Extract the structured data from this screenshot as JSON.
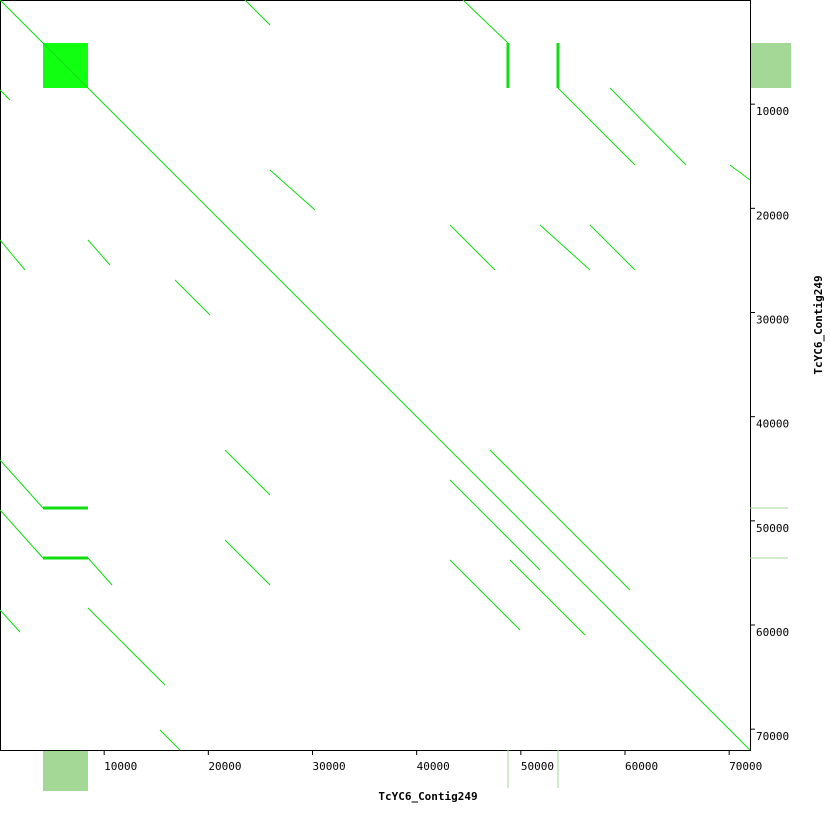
{
  "chart_data": {
    "type": "dotplot",
    "xlabel": "TcYC6_Contig249",
    "ylabel": "TcYC6_Contig249",
    "xlim": [
      0,
      72000
    ],
    "ylim": [
      0,
      72000
    ],
    "xticks": [
      10000,
      20000,
      30000,
      40000,
      50000,
      60000,
      70000
    ],
    "yticks": [
      10000,
      20000,
      30000,
      40000,
      50000,
      60000,
      70000
    ],
    "color": "#11dd11",
    "block_color": "#11ff11",
    "coverage_color": "#a3d896",
    "blocks": [
      [
        4128,
        4128,
        8448,
        8448
      ]
    ],
    "segments": [
      [
        0,
        0,
        72000,
        72000
      ],
      [
        23520,
        0,
        25920,
        2400
      ],
      [
        44448,
        0,
        48768,
        4128
      ],
      [
        53568,
        8448,
        60960,
        15840
      ],
      [
        58560,
        8448,
        65856,
        15840
      ],
      [
        0,
        8640,
        960,
        9600
      ],
      [
        25920,
        16320,
        30240,
        20160
      ],
      [
        0,
        23040,
        2400,
        25920
      ],
      [
        8448,
        23040,
        10560,
        25440
      ],
      [
        16800,
        26880,
        20160,
        30240
      ],
      [
        43200,
        21600,
        47520,
        25920
      ],
      [
        51840,
        21600,
        56640,
        25920
      ],
      [
        56640,
        21600,
        60960,
        25920
      ],
      [
        0,
        44160,
        4128,
        48768
      ],
      [
        0,
        48960,
        4128,
        53568
      ],
      [
        8448,
        53568,
        10752,
        56160
      ],
      [
        8448,
        58368,
        15840,
        65760
      ],
      [
        21600,
        43200,
        25920,
        47520
      ],
      [
        21600,
        51840,
        25920,
        56160
      ],
      [
        43200,
        46080,
        51840,
        54720
      ],
      [
        47040,
        43200,
        60480,
        56640
      ],
      [
        43200,
        53760,
        49920,
        60480
      ],
      [
        48960,
        53760,
        56160,
        60960
      ],
      [
        70080,
        15840,
        72000,
        17280
      ],
      [
        15360,
        70080,
        17280,
        72000
      ],
      [
        0,
        58560,
        1920,
        60672
      ],
      [
        48768,
        4128,
        48768,
        8448
      ],
      [
        53568,
        4128,
        53568,
        8448
      ],
      [
        4128,
        48768,
        8448,
        48768
      ],
      [
        4128,
        53568,
        8448,
        53568
      ]
    ]
  }
}
